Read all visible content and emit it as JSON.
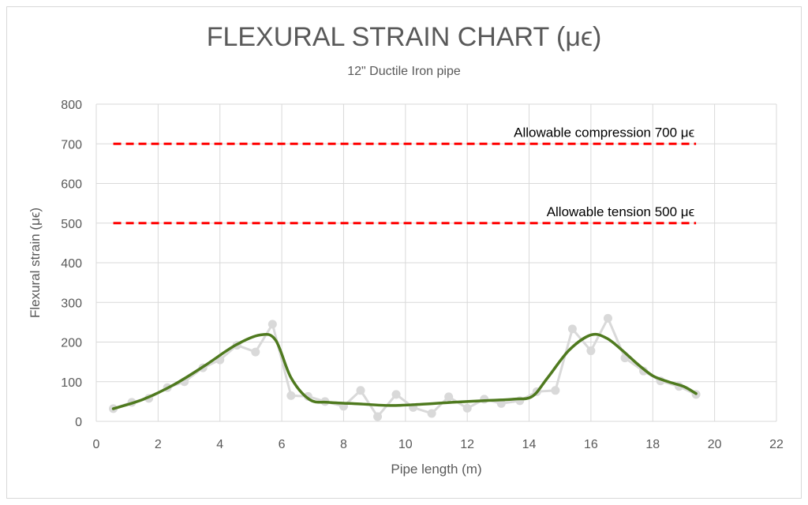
{
  "chart_data": {
    "type": "line",
    "title": "FLEXURAL STRAIN CHART (μϵ)",
    "subtitle": "12\" Ductile Iron pipe",
    "xlabel": "Pipe length (m)",
    "ylabel": "Flexural strain (μϵ)",
    "xlim": [
      0,
      22
    ],
    "ylim": [
      0,
      800
    ],
    "xticks": [
      0,
      2,
      4,
      6,
      8,
      10,
      12,
      14,
      16,
      18,
      20,
      22
    ],
    "yticks": [
      0,
      100,
      200,
      300,
      400,
      500,
      600,
      700,
      800
    ],
    "grid": true,
    "legend": "none",
    "series": [
      {
        "kind": "measured-points",
        "color": "#d9d9d9",
        "x": [
          0.55,
          1.15,
          1.7,
          2.3,
          2.85,
          3.45,
          4.0,
          4.55,
          5.15,
          5.7,
          6.3,
          6.85,
          7.4,
          8.0,
          8.55,
          9.1,
          9.7,
          10.25,
          10.85,
          11.4,
          12.0,
          12.55,
          13.1,
          13.7,
          14.25,
          14.85,
          15.4,
          16.0,
          16.55,
          17.1,
          17.7,
          18.25,
          18.85,
          19.4
        ],
        "y": [
          32,
          48,
          58,
          85,
          100,
          135,
          155,
          192,
          175,
          245,
          65,
          63,
          50,
          38,
          78,
          12,
          68,
          35,
          20,
          62,
          33,
          56,
          45,
          52,
          75,
          78,
          233,
          178,
          260,
          160,
          127,
          102,
          88,
          68
        ]
      },
      {
        "kind": "trend",
        "color": "#4f7a1f",
        "x": [
          0.55,
          1.5,
          2.5,
          3.5,
          4.5,
          5.3,
          5.8,
          6.3,
          6.9,
          7.5,
          8.5,
          9.5,
          10.5,
          11.5,
          12.5,
          13.5,
          14.1,
          14.6,
          15.3,
          16.0,
          16.5,
          17.0,
          17.5,
          18.0,
          18.5,
          19.0,
          19.4
        ],
        "y": [
          32,
          55,
          92,
          140,
          192,
          218,
          205,
          110,
          55,
          48,
          44,
          40,
          43,
          48,
          52,
          56,
          63,
          110,
          180,
          218,
          210,
          180,
          145,
          115,
          100,
          88,
          70
        ]
      }
    ],
    "reference_lines": [
      {
        "y": 700,
        "label": "Allowable compression 700 μϵ",
        "color": "#ff0000",
        "x_start": 0.55,
        "x_end": 19.4
      },
      {
        "y": 500,
        "label": "Allowable tension 500 μϵ",
        "color": "#ff0000",
        "x_start": 0.55,
        "x_end": 19.4
      }
    ]
  }
}
